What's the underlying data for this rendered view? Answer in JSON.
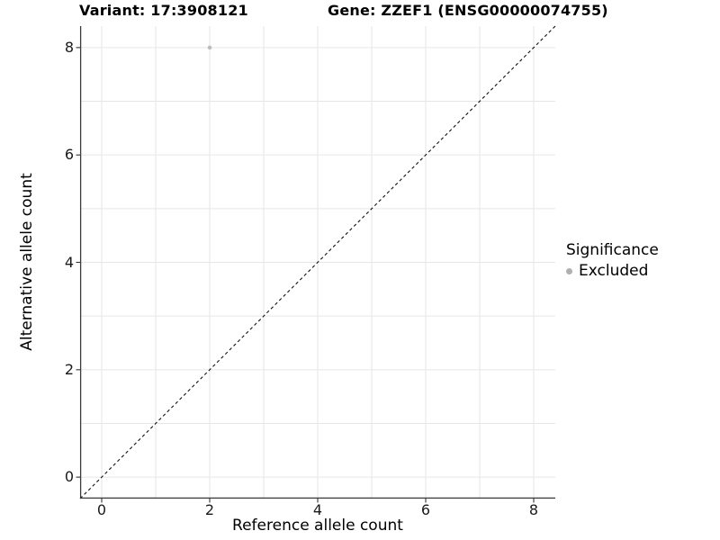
{
  "titles": {
    "variant": "Variant: 17:3908121",
    "gene": "Gene: ZZEF1 (ENSG00000074755)"
  },
  "axes": {
    "x_label": "Reference allele count",
    "y_label": "Alternative allele count"
  },
  "legend": {
    "title": "Significance",
    "items": [
      {
        "label": "Excluded",
        "swatch_color": "#b0b0b0",
        "marker": "circle"
      }
    ]
  },
  "chart_data": {
    "type": "scatter",
    "title_left": "Variant: 17:3908121",
    "title_right": "Gene: ZZEF1 (ENSG00000074755)",
    "xlabel": "Reference allele count",
    "ylabel": "Alternative allele count",
    "xlim": [
      -0.4,
      8.4
    ],
    "ylim": [
      -0.4,
      8.4
    ],
    "x_ticks": [
      0,
      2,
      4,
      6,
      8
    ],
    "y_ticks": [
      0,
      2,
      4,
      6,
      8
    ],
    "grid": "on",
    "grid_every": 1,
    "legend_position": "right",
    "series": [
      {
        "name": "Excluded",
        "color": "#bcbcbc",
        "points": [
          {
            "x": 2,
            "y": 8
          }
        ]
      }
    ],
    "reference_line": {
      "kind": "identity",
      "slope": 1,
      "intercept": 0,
      "style": "dashed",
      "color": "#111111"
    }
  },
  "style": {
    "background": "#ffffff",
    "grid_color": "#e6e6e6",
    "axis_line_color": "#3a3a3a",
    "tick_mark_color": "#333333",
    "text_color": "#000000",
    "point_color": "#bcbcbc"
  }
}
